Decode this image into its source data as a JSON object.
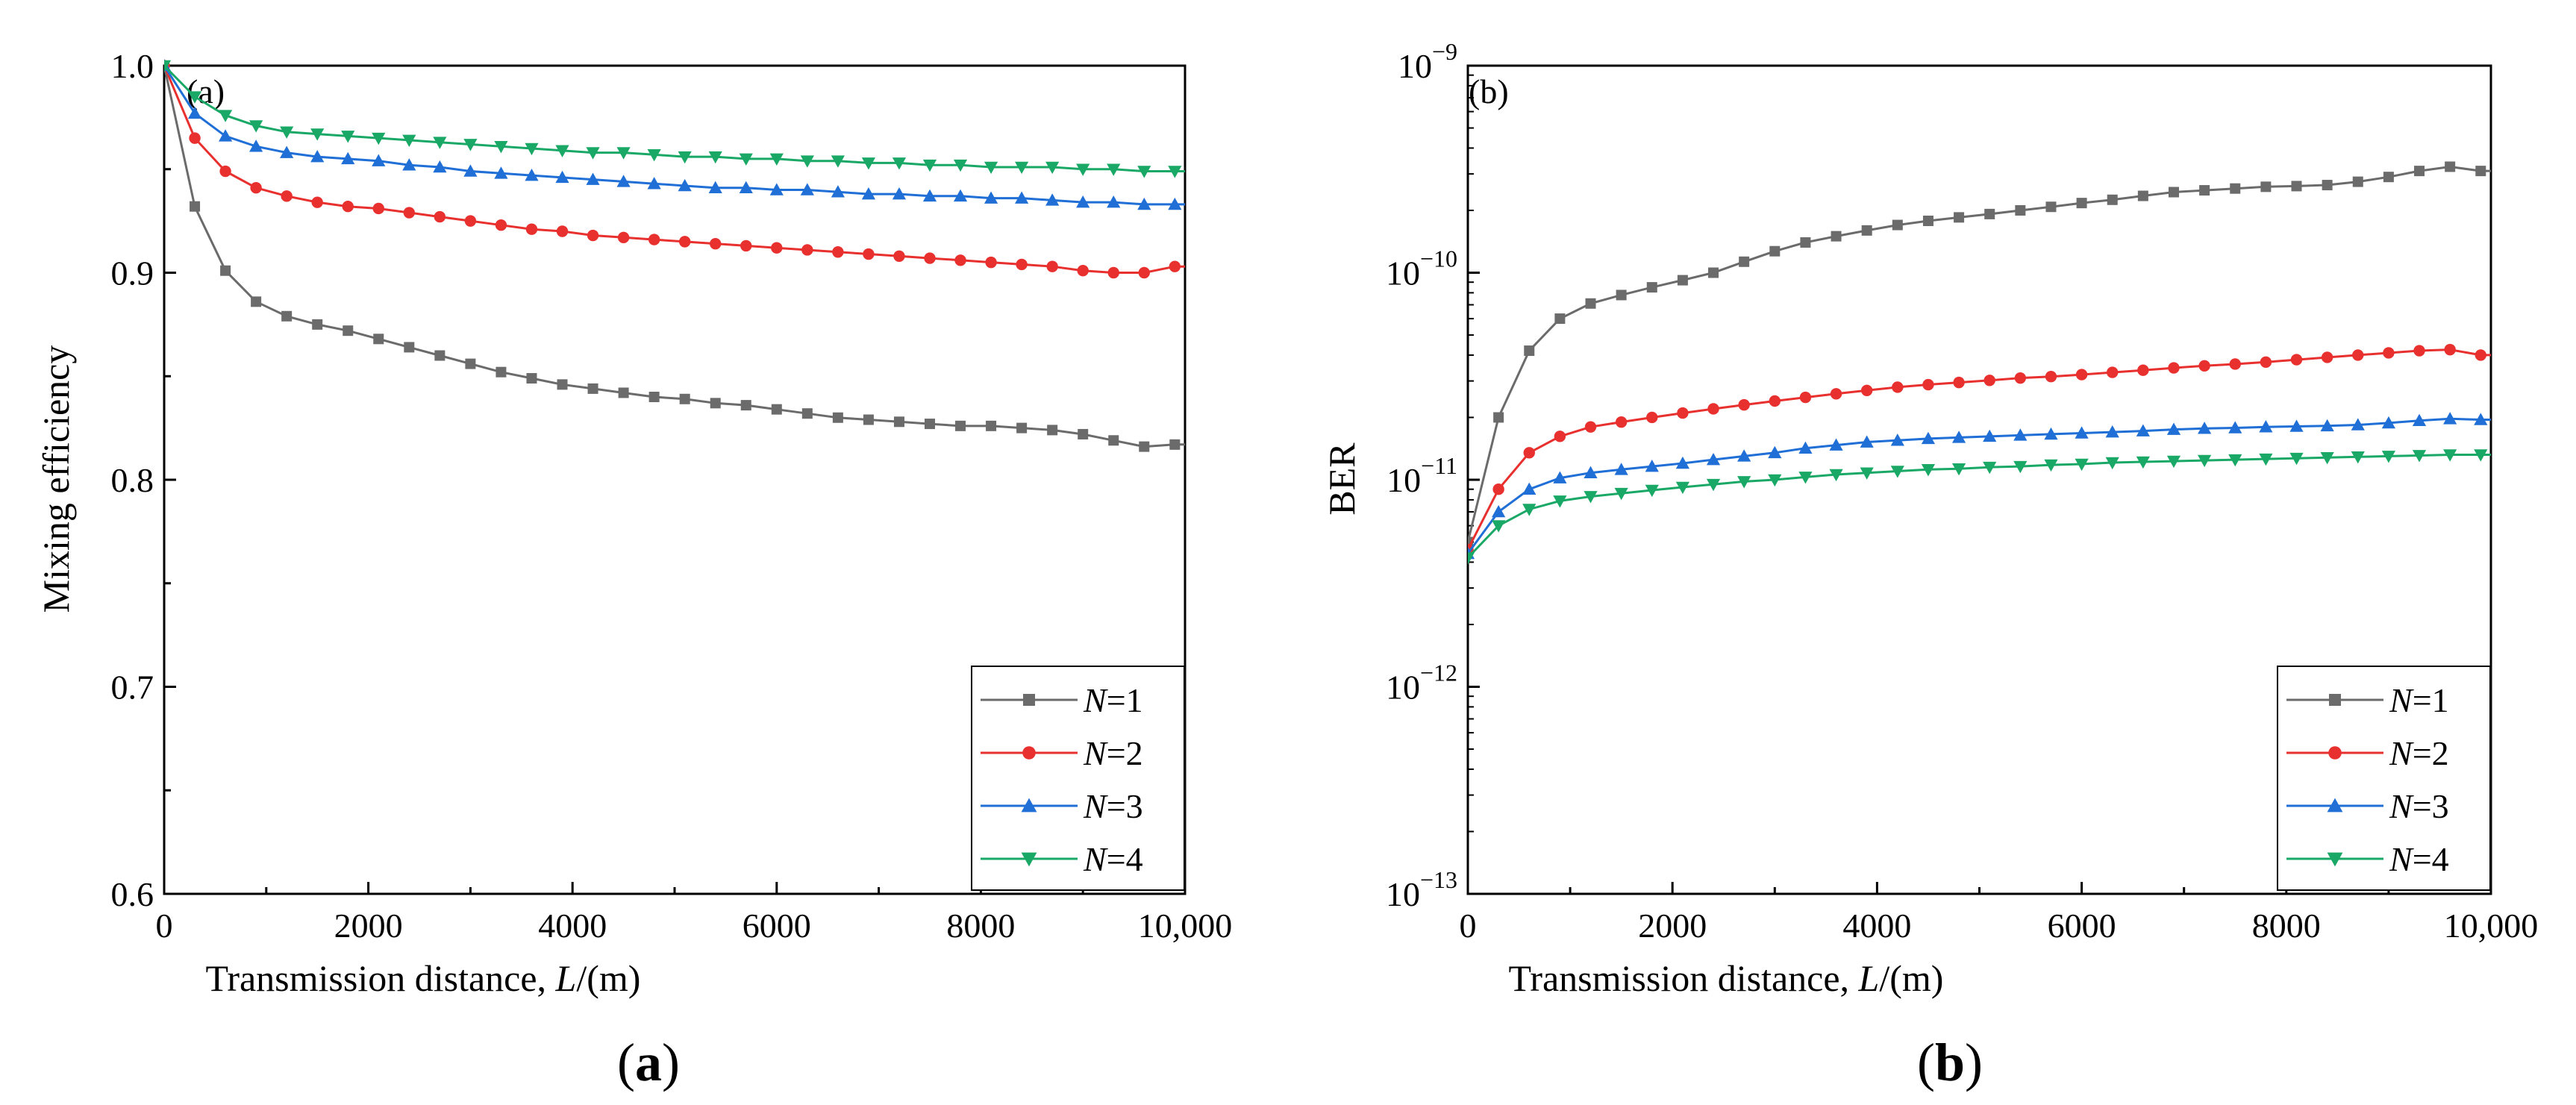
{
  "panels": [
    {
      "caption_open": "(",
      "caption_letter": "a",
      "caption_close": ")"
    },
    {
      "caption_open": "(",
      "caption_letter": "b",
      "caption_close": ")"
    }
  ],
  "chart_data": [
    {
      "type": "line",
      "panel_tag": "(a)",
      "xlabel_prefix": "Transmission distance, ",
      "xlabel_var": "L",
      "xlabel_suffix": "/(m)",
      "ylabel": "Mixing efficiency",
      "xlim": [
        0,
        10000
      ],
      "ylim": [
        0.6,
        1.0
      ],
      "y_scale": "linear",
      "x_ticks": [
        0,
        2000,
        4000,
        6000,
        8000,
        10000
      ],
      "x_tick_labels": [
        "0",
        "2000",
        "4000",
        "6000",
        "8000",
        "10,000"
      ],
      "y_ticks": [
        0.6,
        0.7,
        0.8,
        0.9,
        1.0
      ],
      "y_tick_labels": [
        "0.6",
        "0.7",
        "0.8",
        "0.9",
        "1.0"
      ],
      "grid": false,
      "legend_position": "bottom-right",
      "x": [
        0,
        300,
        600,
        900,
        1200,
        1500,
        1800,
        2100,
        2400,
        2700,
        3000,
        3300,
        3600,
        3900,
        4200,
        4500,
        4800,
        5100,
        5400,
        5700,
        6000,
        6300,
        6600,
        6900,
        7200,
        7500,
        7800,
        8100,
        8400,
        8700,
        9000,
        9300,
        9600,
        9900
      ],
      "series": [
        {
          "name_var": "N",
          "name_eq": "=1",
          "color": "#6b6b6b",
          "marker": "square",
          "values": [
            1.0,
            0.932,
            0.901,
            0.886,
            0.879,
            0.875,
            0.872,
            0.868,
            0.864,
            0.86,
            0.856,
            0.852,
            0.849,
            0.846,
            0.844,
            0.842,
            0.84,
            0.839,
            0.837,
            0.836,
            0.834,
            0.832,
            0.83,
            0.829,
            0.828,
            0.827,
            0.826,
            0.826,
            0.825,
            0.824,
            0.822,
            0.819,
            0.816,
            0.817
          ]
        },
        {
          "name_var": "N",
          "name_eq": "=2",
          "color": "#e8302e",
          "marker": "circle",
          "values": [
            1.0,
            0.965,
            0.949,
            0.941,
            0.937,
            0.934,
            0.932,
            0.931,
            0.929,
            0.927,
            0.925,
            0.923,
            0.921,
            0.92,
            0.918,
            0.917,
            0.916,
            0.915,
            0.914,
            0.913,
            0.912,
            0.911,
            0.91,
            0.909,
            0.908,
            0.907,
            0.906,
            0.905,
            0.904,
            0.903,
            0.901,
            0.9,
            0.9,
            0.903
          ]
        },
        {
          "name_var": "N",
          "name_eq": "=3",
          "color": "#1f6fd6",
          "marker": "triangle-up",
          "values": [
            1.0,
            0.977,
            0.966,
            0.961,
            0.958,
            0.956,
            0.955,
            0.954,
            0.952,
            0.951,
            0.949,
            0.948,
            0.947,
            0.946,
            0.945,
            0.944,
            0.943,
            0.942,
            0.941,
            0.941,
            0.94,
            0.94,
            0.939,
            0.938,
            0.938,
            0.937,
            0.937,
            0.936,
            0.936,
            0.935,
            0.934,
            0.934,
            0.933,
            0.933
          ]
        },
        {
          "name_var": "N",
          "name_eq": "=4",
          "color": "#1aa867",
          "marker": "triangle-down",
          "values": [
            1.0,
            0.985,
            0.976,
            0.971,
            0.968,
            0.967,
            0.966,
            0.965,
            0.964,
            0.963,
            0.962,
            0.961,
            0.96,
            0.959,
            0.958,
            0.958,
            0.957,
            0.956,
            0.956,
            0.955,
            0.955,
            0.954,
            0.954,
            0.953,
            0.953,
            0.952,
            0.952,
            0.951,
            0.951,
            0.951,
            0.95,
            0.95,
            0.949,
            0.949
          ]
        }
      ]
    },
    {
      "type": "line",
      "panel_tag": "(b)",
      "xlabel_prefix": "Transmission distance, ",
      "xlabel_var": "L",
      "xlabel_suffix": "/(m)",
      "ylabel": "BER",
      "xlim": [
        0,
        10000
      ],
      "ylim": [
        1e-13,
        1e-09
      ],
      "y_scale": "log",
      "x_ticks": [
        0,
        2000,
        4000,
        6000,
        8000,
        10000
      ],
      "x_tick_labels": [
        "0",
        "2000",
        "4000",
        "6000",
        "8000",
        "10,000"
      ],
      "y_ticks": [
        1e-13,
        1e-12,
        1e-11,
        1e-10,
        1e-09
      ],
      "y_tick_base": "10",
      "y_tick_exponents": [
        "−13",
        "−12",
        "−11",
        "−10",
        "−9"
      ],
      "grid": false,
      "legend_position": "bottom-right",
      "x": [
        0,
        300,
        600,
        900,
        1200,
        1500,
        1800,
        2100,
        2400,
        2700,
        3000,
        3300,
        3600,
        3900,
        4200,
        4500,
        4800,
        5100,
        5400,
        5700,
        6000,
        6300,
        6600,
        6900,
        7200,
        7500,
        7800,
        8100,
        8400,
        8700,
        9000,
        9300,
        9600,
        9900
      ],
      "series": [
        {
          "name_var": "N",
          "name_eq": "=1",
          "color": "#6b6b6b",
          "marker": "square",
          "values": [
            5e-12,
            2e-11,
            4.2e-11,
            6e-11,
            7.1e-11,
            7.8e-11,
            8.5e-11,
            9.2e-11,
            1e-10,
            1.13e-10,
            1.27e-10,
            1.4e-10,
            1.5e-10,
            1.6e-10,
            1.7e-10,
            1.78e-10,
            1.85e-10,
            1.92e-10,
            2e-10,
            2.08e-10,
            2.17e-10,
            2.25e-10,
            2.35e-10,
            2.45e-10,
            2.5e-10,
            2.55e-10,
            2.6e-10,
            2.62e-10,
            2.65e-10,
            2.75e-10,
            2.9e-10,
            3.1e-10,
            3.25e-10,
            3.1e-10
          ]
        },
        {
          "name_var": "N",
          "name_eq": "=2",
          "color": "#e8302e",
          "marker": "circle",
          "values": [
            4.6e-12,
            9e-12,
            1.35e-11,
            1.62e-11,
            1.8e-11,
            1.9e-11,
            2e-11,
            2.1e-11,
            2.2e-11,
            2.3e-11,
            2.4e-11,
            2.5e-11,
            2.6e-11,
            2.7e-11,
            2.8e-11,
            2.88e-11,
            2.95e-11,
            3.02e-11,
            3.1e-11,
            3.15e-11,
            3.22e-11,
            3.3e-11,
            3.38e-11,
            3.47e-11,
            3.55e-11,
            3.62e-11,
            3.7e-11,
            3.8e-11,
            3.9e-11,
            4e-11,
            4.1e-11,
            4.2e-11,
            4.25e-11,
            4e-11
          ]
        },
        {
          "name_var": "N",
          "name_eq": "=3",
          "color": "#1f6fd6",
          "marker": "triangle-up",
          "values": [
            4.4e-12,
            7e-12,
            9e-12,
            1.02e-11,
            1.08e-11,
            1.12e-11,
            1.16e-11,
            1.2e-11,
            1.25e-11,
            1.3e-11,
            1.35e-11,
            1.42e-11,
            1.47e-11,
            1.52e-11,
            1.55e-11,
            1.58e-11,
            1.6e-11,
            1.62e-11,
            1.64e-11,
            1.66e-11,
            1.68e-11,
            1.7e-11,
            1.72e-11,
            1.75e-11,
            1.77e-11,
            1.78e-11,
            1.8e-11,
            1.81e-11,
            1.82e-11,
            1.84e-11,
            1.88e-11,
            1.93e-11,
            1.97e-11,
            1.95e-11
          ]
        },
        {
          "name_var": "N",
          "name_eq": "=4",
          "color": "#1aa867",
          "marker": "triangle-down",
          "values": [
            4.2e-12,
            6e-12,
            7.2e-12,
            7.9e-12,
            8.3e-12,
            8.6e-12,
            8.9e-12,
            9.2e-12,
            9.5e-12,
            9.8e-12,
            1e-11,
            1.03e-11,
            1.06e-11,
            1.08e-11,
            1.1e-11,
            1.12e-11,
            1.13e-11,
            1.15e-11,
            1.16e-11,
            1.18e-11,
            1.19e-11,
            1.21e-11,
            1.22e-11,
            1.23e-11,
            1.24e-11,
            1.25e-11,
            1.26e-11,
            1.27e-11,
            1.28e-11,
            1.29e-11,
            1.3e-11,
            1.31e-11,
            1.32e-11,
            1.32e-11
          ]
        }
      ]
    }
  ]
}
